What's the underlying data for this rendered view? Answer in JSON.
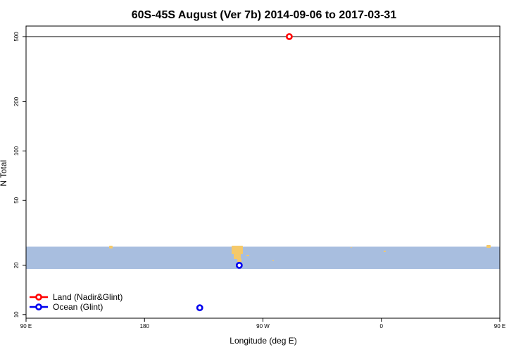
{
  "chart_data": {
    "type": "scatter",
    "title": "60S-45S August (Ver 7b)   2014-09-06 to 2017-03-31",
    "xlabel": "Longitude (deg E)",
    "ylabel": "N Total",
    "xlim": [
      90,
      450
    ],
    "ylim": [
      9.5,
      580
    ],
    "y_scale": "log",
    "x_ticks": [
      {
        "value": 90,
        "label": "90 E"
      },
      {
        "value": 180,
        "label": "180"
      },
      {
        "value": 270,
        "label": "90 W"
      },
      {
        "value": 360,
        "label": "0"
      },
      {
        "value": 450,
        "label": "90 E"
      },
      {
        "value": 540,
        "label": "180"
      }
    ],
    "y_ticks": [
      10,
      20,
      50,
      100,
      200,
      500
    ],
    "reference_line": 500,
    "series": [
      {
        "name": "Land (Nadir&Glint)",
        "color": "#ff0000",
        "points": [
          {
            "x": 290,
            "y": 500
          }
        ]
      },
      {
        "name": "Ocean (Glint)",
        "color": "#0000ee",
        "points": [
          {
            "x": 252,
            "y": 20
          },
          {
            "x": 222,
            "y": 11
          }
        ]
      }
    ],
    "background_band": {
      "y_range": [
        19,
        26
      ],
      "color": "#a8bedf",
      "land_color": "#f5c96a"
    },
    "legend": "bottom-left"
  }
}
